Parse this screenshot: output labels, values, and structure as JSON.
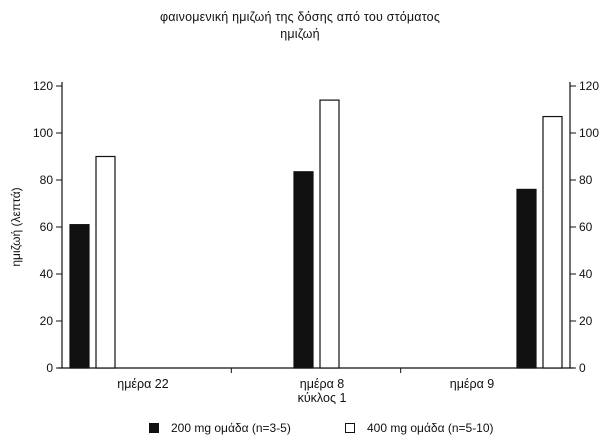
{
  "chart_data": {
    "type": "bar",
    "title_lines": [
      "φαινομενική ημιζωή της δόσης από του στόματος",
      "ημιζωή"
    ],
    "ylabel": "ημιζωή (λεπτά)",
    "xlabel": "",
    "ylim": [
      0,
      120
    ],
    "yticks": [
      0,
      20,
      40,
      60,
      80,
      100,
      120
    ],
    "grid": false,
    "secondary_y_axis": true,
    "legend_position": "bottom",
    "categories": [
      {
        "lines": [
          "ημέρα 22"
        ]
      },
      {
        "lines": [
          "ημέρα 8",
          "κύκλος 1"
        ]
      },
      {
        "lines": [
          "ημέρα 9"
        ]
      }
    ],
    "series": [
      {
        "name": "200 mg ομάδα (n=3-5)",
        "color": "#111111",
        "values": [
          61,
          83.5,
          76
        ]
      },
      {
        "name": "400 mg ομάδα (n=5-10)",
        "color": "#ffffff",
        "values": [
          90,
          114,
          107
        ]
      }
    ]
  }
}
